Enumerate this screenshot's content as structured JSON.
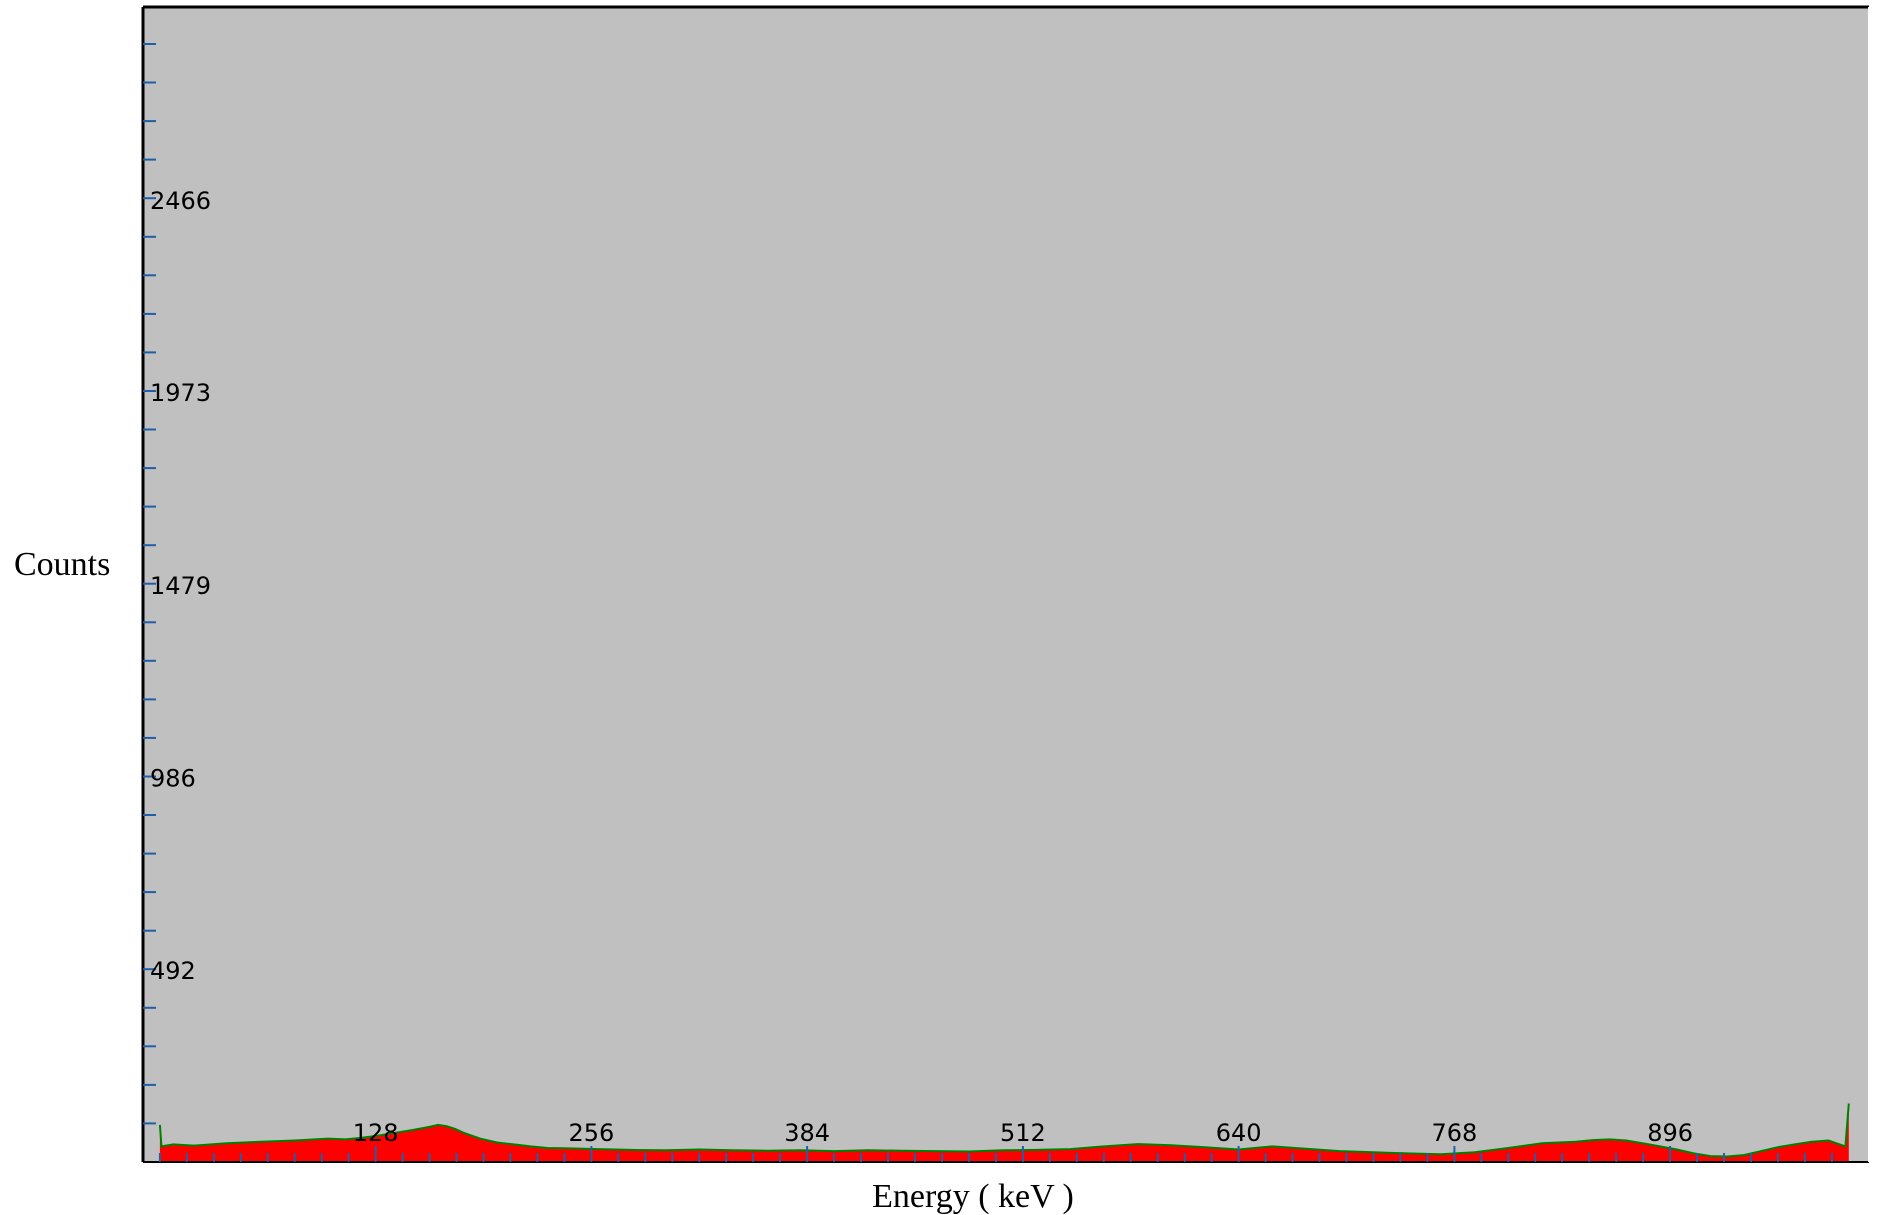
{
  "chart_data": {
    "type": "area",
    "title": "",
    "xlabel": "Energy ( keV )",
    "ylabel": "Counts",
    "xlim": [
      -10,
      1014
    ],
    "ylim": [
      0,
      2960
    ],
    "x_ticks": [
      128,
      256,
      384,
      512,
      640,
      768,
      896
    ],
    "y_ticks": [
      492,
      986,
      1479,
      1973,
      2466
    ],
    "grid": false,
    "legend": "none",
    "background_color": "#c0c0c0",
    "series": [
      {
        "color": "#ff0000",
        "outline_color": "#008000",
        "x": [
          0,
          1,
          8,
          20,
          40,
          60,
          80,
          100,
          110,
          120,
          130,
          140,
          150,
          160,
          165,
          170,
          175,
          180,
          190,
          200,
          210,
          220,
          230,
          240,
          260,
          280,
          300,
          320,
          340,
          360,
          380,
          400,
          420,
          440,
          460,
          480,
          500,
          520,
          540,
          560,
          580,
          600,
          620,
          640,
          660,
          680,
          700,
          720,
          740,
          760,
          780,
          800,
          820,
          840,
          850,
          860,
          870,
          880,
          890,
          900,
          910,
          920,
          930,
          940,
          950,
          960,
          970,
          980,
          990,
          1000,
          1002
        ],
        "values": [
          95,
          40,
          45,
          42,
          48,
          52,
          55,
          60,
          58,
          62,
          68,
          75,
          82,
          90,
          95,
          92,
          85,
          75,
          60,
          50,
          45,
          40,
          36,
          35,
          33,
          31,
          30,
          32,
          30,
          29,
          30,
          28,
          30,
          29,
          28,
          27,
          30,
          31,
          33,
          40,
          46,
          43,
          38,
          32,
          40,
          34,
          28,
          25,
          22,
          20,
          25,
          36,
          48,
          52,
          56,
          58,
          55,
          48,
          40,
          32,
          22,
          15,
          14,
          18,
          28,
          38,
          45,
          52,
          55,
          40,
          150
        ]
      }
    ]
  }
}
